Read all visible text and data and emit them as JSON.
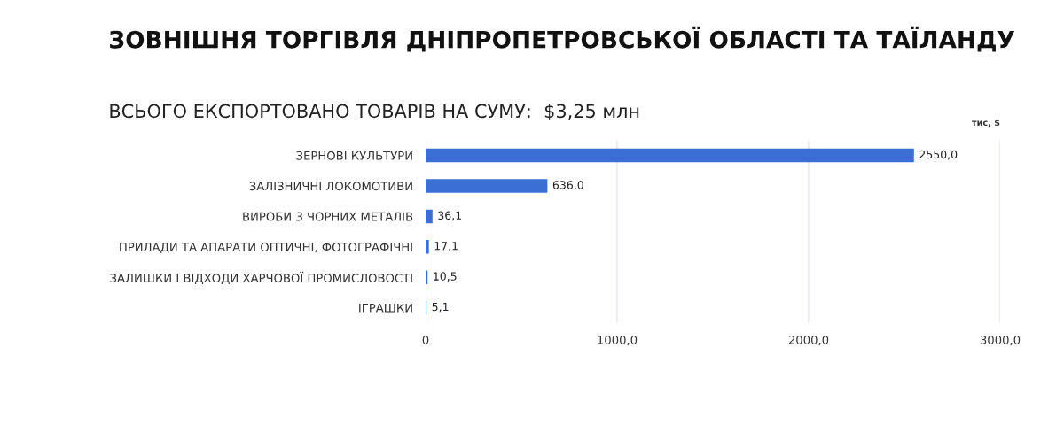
{
  "chart_data": {
    "type": "bar",
    "orientation": "horizontal",
    "title": "ЗОВНІШНЯ ТОРГІВЛЯ ДНІПРОПЕТРОВСЬКОЇ ОБЛАСТІ ТА ТАЇЛАНДУ",
    "subtitle": "ВСЬОГО ЕКСПОРТОВАНО ТОВАРІВ НА СУМУ:  $3,25 млн",
    "xlabel": "тис, $",
    "categories": [
      "ЗЕРНОВІ КУЛЬТУРИ",
      "ЗАЛІЗНИЧНІ ЛОКОМОТИВИ",
      "ВИРОБИ З ЧОРНИХ МЕТАЛІВ",
      "ПРИЛАДИ ТА АПАРАТИ ОПТИЧНІ, ФОТОГРАФІЧНІ",
      "ЗАЛИШКИ І ВІДХОДИ ХАРЧОВОЇ ПРОМИСЛОВОСТІ",
      "ІГРАШКИ"
    ],
    "values": [
      2550.0,
      636.0,
      36.1,
      17.1,
      10.5,
      5.1
    ],
    "value_labels": [
      "2550,0",
      "636,0",
      "36,1",
      "17,1",
      "10,5",
      "5,1"
    ],
    "color": "#3b6fd6",
    "xlim": [
      0,
      3000
    ],
    "xticks": [
      0,
      {
        "value": 1000,
        "label": "1000,0"
      },
      {
        "value": 2000,
        "label": "2000,0"
      },
      {
        "value": 3000,
        "label": "3000,0"
      }
    ],
    "grid": "x"
  }
}
